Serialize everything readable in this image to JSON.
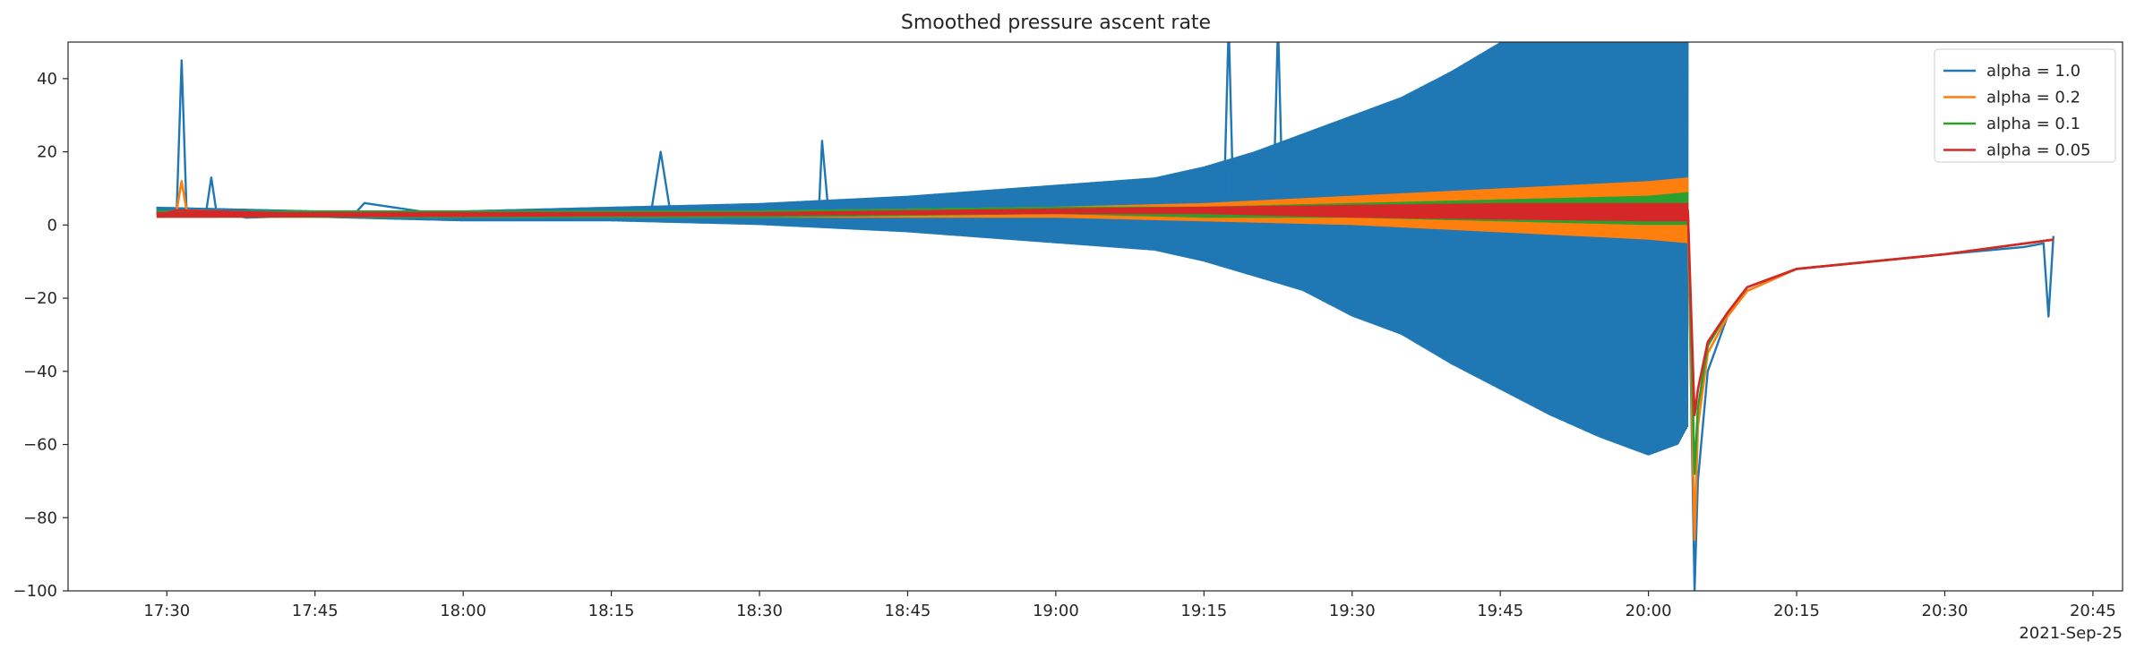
{
  "chart_data": {
    "type": "line",
    "title": "Smoothed pressure ascent rate",
    "xlabel": "",
    "ylabel": "",
    "x_axis_type": "time",
    "date_offset_label": "2021-Sep-25",
    "xlim": [
      "17:20",
      "20:48"
    ],
    "ylim": [
      -100,
      50
    ],
    "x_ticks": [
      "17:30",
      "17:45",
      "18:00",
      "18:15",
      "18:30",
      "18:45",
      "19:00",
      "19:15",
      "19:30",
      "19:45",
      "20:00",
      "20:15",
      "20:30",
      "20:45"
    ],
    "y_ticks": [
      -100,
      -80,
      -60,
      -40,
      -20,
      0,
      20,
      40
    ],
    "grid": false,
    "legend_position": "top-right",
    "colors": {
      "alpha = 1.0": "#1f77b4",
      "alpha = 0.2": "#ff7f0e",
      "alpha = 0.1": "#2ca02c",
      "alpha = 0.05": "#d62728"
    },
    "series": [
      {
        "name": "alpha = 1.0",
        "color": "#1f77b4",
        "x": [
          "17:29",
          "17:31",
          "17:31:30",
          "17:32",
          "17:34",
          "17:34:30",
          "17:35",
          "17:38",
          "17:49",
          "17:50",
          "18:00",
          "18:15",
          "18:19",
          "18:20",
          "18:21",
          "18:30",
          "18:36",
          "18:36:20",
          "18:37",
          "18:45",
          "19:00",
          "19:15",
          "19:17",
          "19:17:30",
          "19:18",
          "19:22",
          "19:22:30",
          "19:23",
          "19:30",
          "19:45",
          "20:00",
          "20:04",
          "20:04:40",
          "20:05",
          "20:06",
          "20:08",
          "20:10",
          "20:15",
          "20:30",
          "20:38",
          "20:40",
          "20:40:30",
          "20:41"
        ],
        "y": [
          4,
          4,
          45,
          4,
          4,
          13,
          4,
          2,
          3,
          6,
          2,
          3,
          3,
          20,
          3,
          3,
          3,
          23,
          3,
          3,
          3,
          3,
          3,
          55,
          3,
          3,
          55,
          3,
          3,
          3,
          3,
          3,
          -100,
          -70,
          -40,
          -25,
          -18,
          -12,
          -8,
          -6,
          -5,
          -25,
          -3
        ],
        "envelope": {
          "x": [
            "17:29",
            "17:45",
            "18:00",
            "18:15",
            "18:30",
            "18:45",
            "18:55",
            "19:00",
            "19:10",
            "19:15",
            "19:20",
            "19:25",
            "19:30",
            "19:35",
            "19:40",
            "19:45",
            "19:50",
            "19:55",
            "20:00",
            "20:03",
            "20:04"
          ],
          "upper": [
            5,
            4,
            4,
            5,
            6,
            8,
            10,
            11,
            13,
            16,
            20,
            25,
            30,
            35,
            42,
            50,
            50,
            50,
            50,
            50,
            50
          ],
          "lower": [
            2,
            2,
            1,
            1,
            0,
            -2,
            -4,
            -5,
            -7,
            -10,
            -14,
            -18,
            -25,
            -30,
            -38,
            -45,
            -52,
            -58,
            -63,
            -60,
            -55
          ]
        }
      },
      {
        "name": "alpha = 0.2",
        "color": "#ff7f0e",
        "x": [
          "17:29",
          "17:31",
          "17:31:30",
          "17:32",
          "17:45",
          "18:00",
          "18:15",
          "18:30",
          "18:45",
          "19:00",
          "19:15",
          "19:30",
          "19:45",
          "20:00",
          "20:04",
          "20:04:40",
          "20:05",
          "20:06",
          "20:08",
          "20:10",
          "20:15",
          "20:30",
          "20:41"
        ],
        "y": [
          3,
          4,
          12,
          4,
          3,
          2.5,
          3,
          3,
          3.5,
          4,
          4,
          4,
          4,
          3,
          3,
          -86,
          -55,
          -35,
          -25,
          -18,
          -12,
          -8,
          -4
        ],
        "envelope": {
          "x": [
            "17:29",
            "18:30",
            "19:00",
            "19:15",
            "19:30",
            "19:45",
            "20:00",
            "20:04"
          ],
          "upper": [
            4,
            4,
            5,
            6,
            8,
            10,
            12,
            13
          ],
          "lower": [
            2,
            2,
            2,
            1,
            0,
            -2,
            -4,
            -5
          ]
        }
      },
      {
        "name": "alpha = 0.1",
        "color": "#2ca02c",
        "x": [
          "17:29",
          "17:31",
          "17:45",
          "18:00",
          "18:15",
          "18:30",
          "18:45",
          "19:00",
          "19:15",
          "19:30",
          "19:45",
          "20:00",
          "20:04",
          "20:04:40",
          "20:05",
          "20:06",
          "20:08",
          "20:10",
          "20:15",
          "20:30",
          "20:41"
        ],
        "y": [
          3,
          4,
          3,
          2.5,
          3,
          3,
          3.5,
          4,
          4,
          4,
          4,
          4,
          4,
          -68,
          -50,
          -33,
          -24,
          -17,
          -12,
          -8,
          -4
        ],
        "envelope": {
          "x": [
            "17:29",
            "18:30",
            "19:00",
            "19:15",
            "19:30",
            "19:45",
            "20:00",
            "20:04"
          ],
          "upper": [
            4,
            4,
            5,
            5,
            6,
            7,
            8,
            9
          ],
          "lower": [
            2,
            2,
            3,
            2,
            2,
            1,
            0,
            0
          ]
        }
      },
      {
        "name": "alpha = 0.05",
        "color": "#d62728",
        "x": [
          "17:29",
          "17:31",
          "17:45",
          "18:00",
          "18:15",
          "18:30",
          "18:45",
          "19:00",
          "19:15",
          "19:30",
          "19:45",
          "20:00",
          "20:04",
          "20:04:40",
          "20:05",
          "20:06",
          "20:08",
          "20:10",
          "20:15",
          "20:30",
          "20:41"
        ],
        "y": [
          2.5,
          4,
          3,
          2.5,
          3,
          3,
          3.5,
          3.5,
          4,
          4,
          3.5,
          3.5,
          3.5,
          -52,
          -45,
          -32,
          -24,
          -17,
          -12,
          -8,
          -4
        ],
        "envelope": {
          "x": [
            "17:29",
            "18:30",
            "19:00",
            "19:15",
            "19:30",
            "19:45",
            "20:00",
            "20:04"
          ],
          "upper": [
            3.5,
            3.5,
            4.5,
            5,
            5.5,
            6,
            6,
            6
          ],
          "lower": [
            2,
            2.5,
            3,
            3,
            2,
            1.5,
            1,
            1
          ]
        }
      }
    ]
  }
}
